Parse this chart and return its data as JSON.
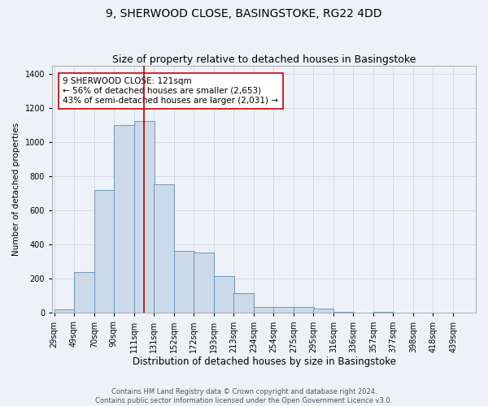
{
  "title": "9, SHERWOOD CLOSE, BASINGSTOKE, RG22 4DD",
  "subtitle": "Size of property relative to detached houses in Basingstoke",
  "xlabel": "Distribution of detached houses by size in Basingstoke",
  "ylabel": "Number of detached properties",
  "bin_labels": [
    "29sqm",
    "49sqm",
    "70sqm",
    "90sqm",
    "111sqm",
    "131sqm",
    "152sqm",
    "172sqm",
    "193sqm",
    "213sqm",
    "234sqm",
    "254sqm",
    "275sqm",
    "295sqm",
    "316sqm",
    "336sqm",
    "357sqm",
    "377sqm",
    "398sqm",
    "418sqm",
    "439sqm"
  ],
  "bin_left_edges": [
    29,
    49,
    70,
    90,
    111,
    131,
    152,
    172,
    193,
    213,
    234,
    254,
    275,
    295,
    316,
    336,
    357,
    377,
    398,
    418,
    439
  ],
  "bar_heights": [
    20,
    240,
    720,
    1100,
    1125,
    755,
    365,
    355,
    215,
    115,
    35,
    35,
    35,
    25,
    5,
    0,
    5,
    0,
    0,
    0,
    0
  ],
  "bin_width": 21,
  "bar_color": "#ccd9e8",
  "bar_edgecolor": "#5b8db8",
  "grid_color": "#ccd5e3",
  "background_color": "#eef2f8",
  "red_line_x": 121,
  "annotation_text": "9 SHERWOOD CLOSE: 121sqm\n← 56% of detached houses are smaller (2,653)\n43% of semi-detached houses are larger (2,031) →",
  "annotation_box_color": "#ffffff",
  "annotation_box_edgecolor": "#cc0000",
  "ylim": [
    0,
    1450
  ],
  "yticks": [
    0,
    200,
    400,
    600,
    800,
    1000,
    1200,
    1400
  ],
  "footer_text": "Contains HM Land Registry data © Crown copyright and database right 2024.\nContains public sector information licensed under the Open Government Licence v3.0.",
  "title_fontsize": 10,
  "subtitle_fontsize": 9,
  "xlabel_fontsize": 8.5,
  "ylabel_fontsize": 7.5,
  "tick_fontsize": 7,
  "annotation_fontsize": 7.5,
  "footer_fontsize": 6
}
